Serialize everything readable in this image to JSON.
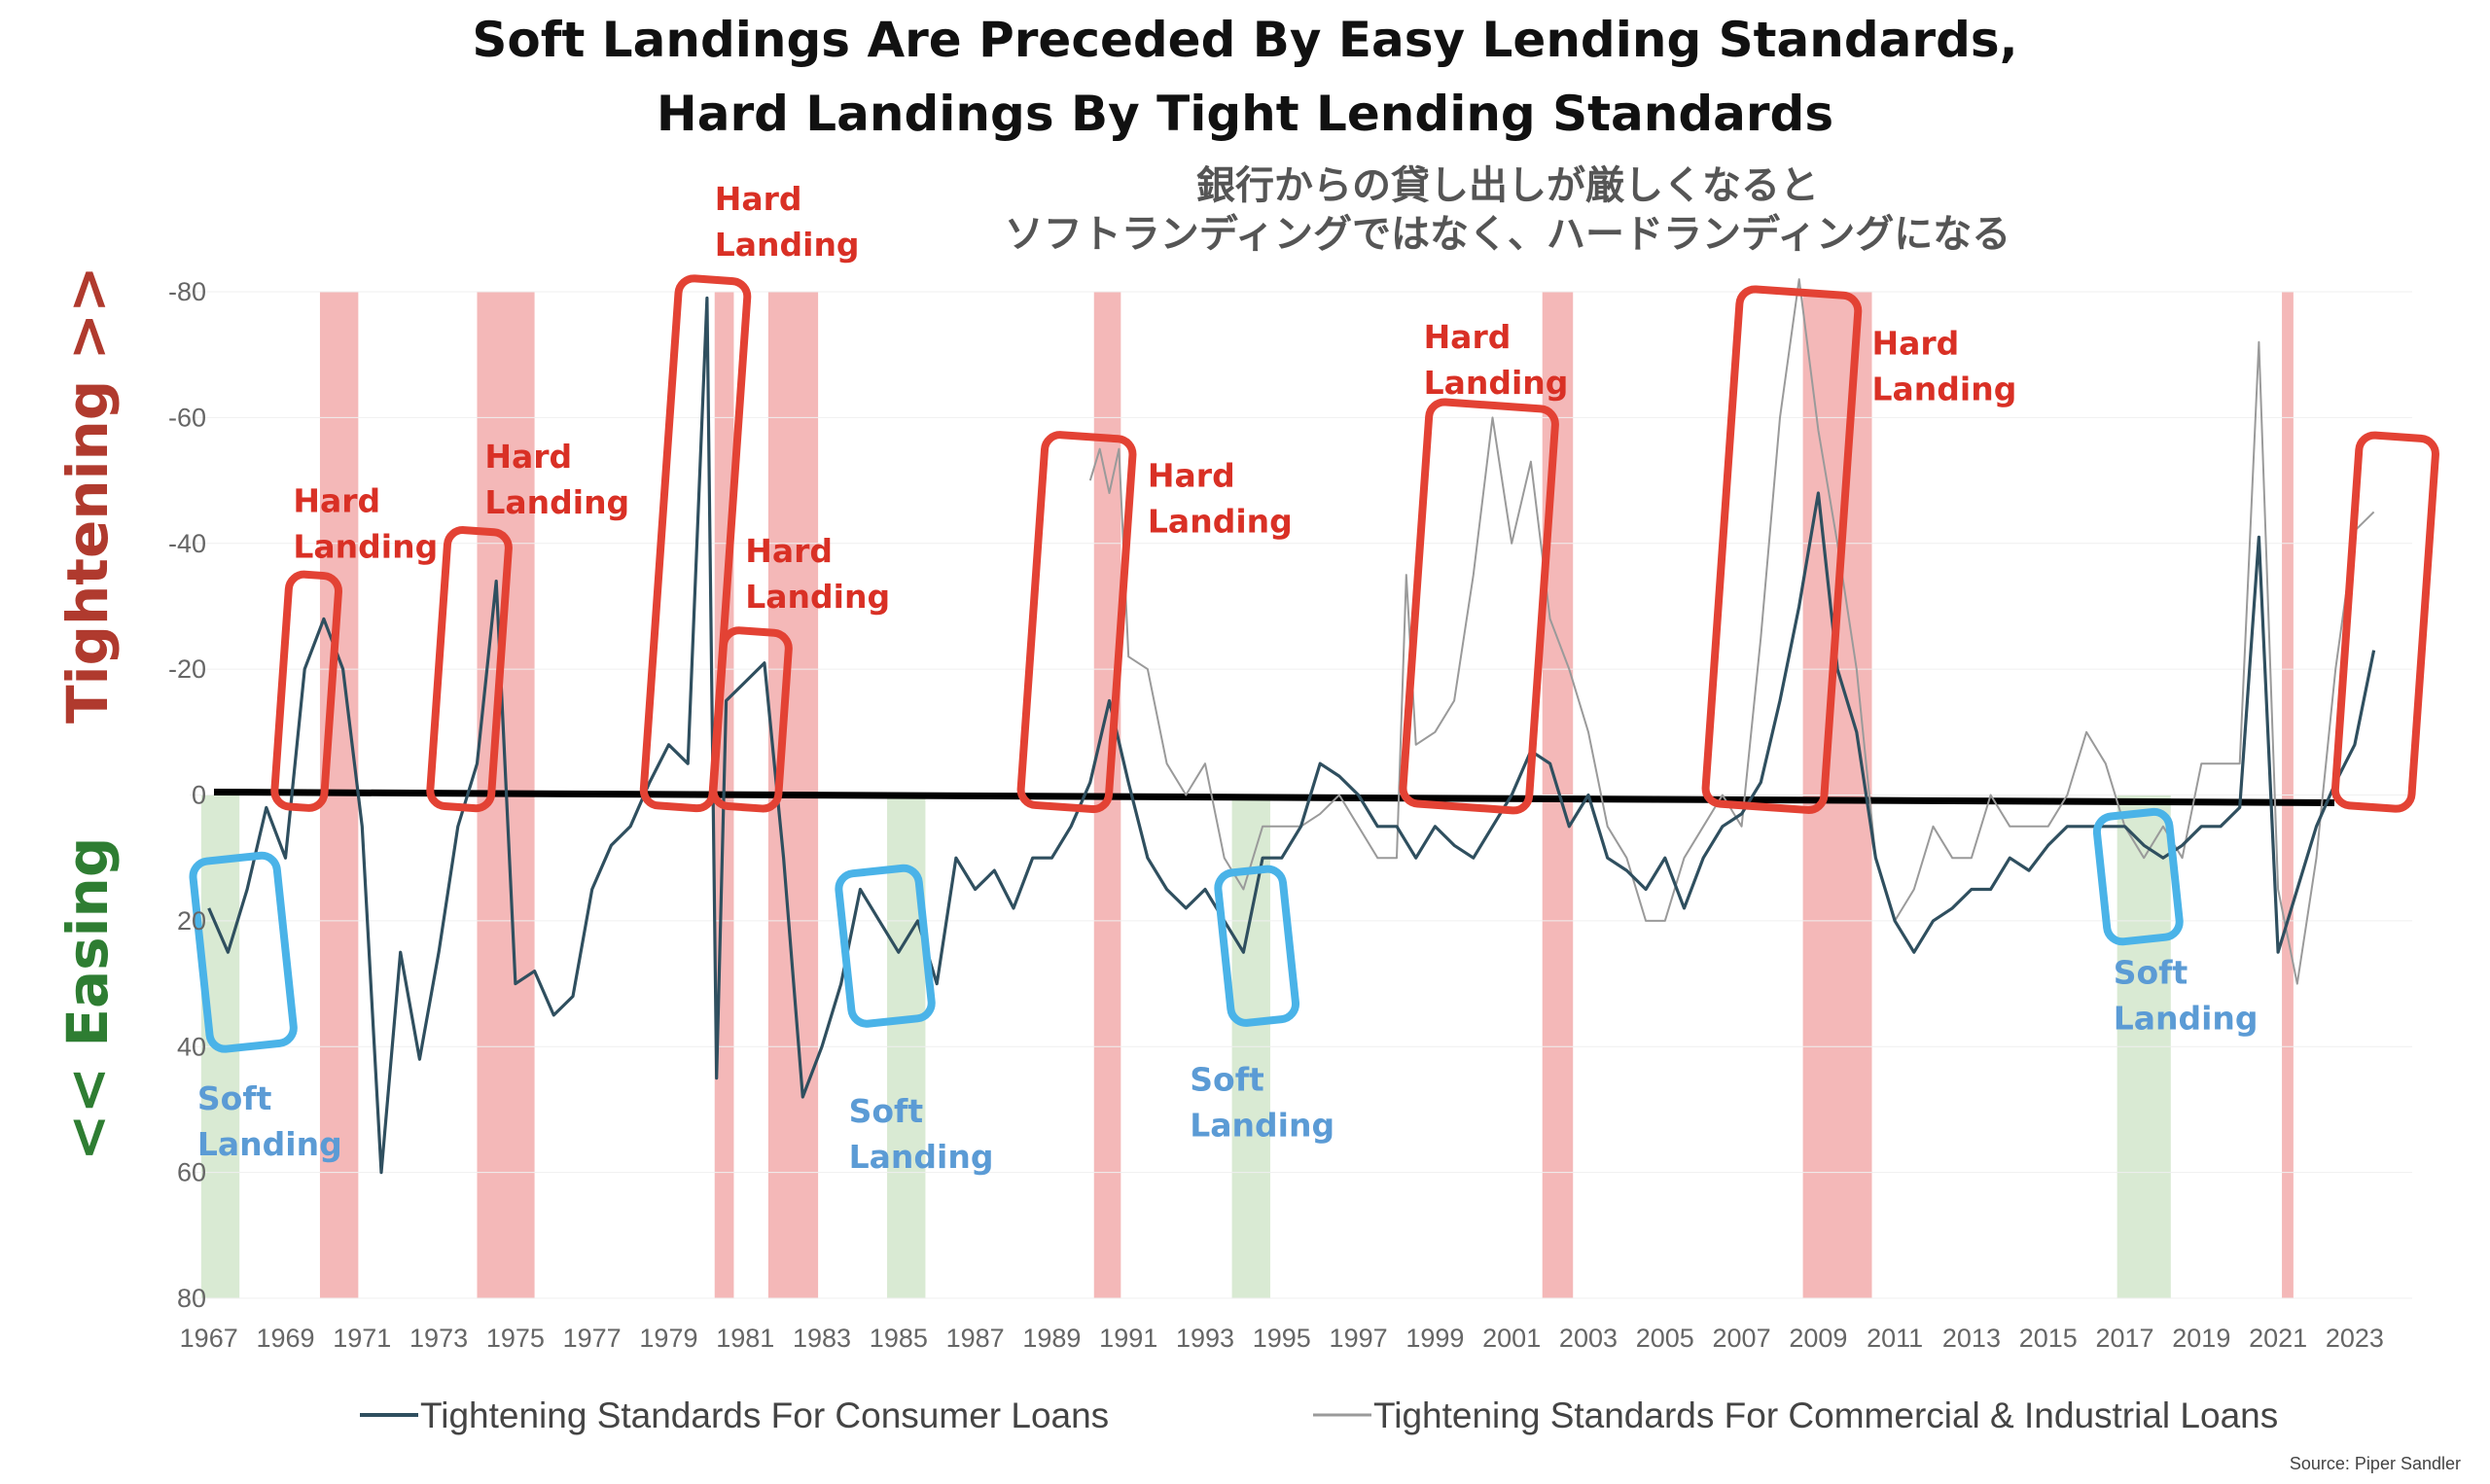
{
  "title_line1": "Soft Landings Are Preceded By Easy Lending Standards,",
  "title_line2": "Hard Landings By Tight Lending Standards",
  "jp_line1": "銀行からの貸し出しが厳しくなると",
  "jp_line2": "ソフトランディングではなく、ハードランディングになる",
  "side_top": "Tightening >>",
  "side_bottom": "<< Easing",
  "source": "Source: Piper Sandler",
  "colors": {
    "consumer": "#2f4f5f",
    "commercial": "#9a9a9a",
    "hard": "#e34234",
    "soft": "#4ab3e8",
    "recession": "#f4b8b8",
    "softband": "#d9ead3"
  },
  "chart_data": {
    "type": "line",
    "y_inverted": true,
    "ylim": [
      80,
      -80
    ],
    "yticks": [
      "-80",
      "-60",
      "-40",
      "-20",
      "0",
      "20",
      "40",
      "60",
      "80"
    ],
    "yticks_values": [
      -80,
      -60,
      -40,
      -20,
      0,
      20,
      40,
      60,
      80
    ],
    "xlim": [
      1966.5,
      2024.5
    ],
    "xticks": [
      "1967",
      "1969",
      "1971",
      "1973",
      "1975",
      "1977",
      "1979",
      "1981",
      "1983",
      "1985",
      "1987",
      "1989",
      "1991",
      "1993",
      "1995",
      "1997",
      "1999",
      "2001",
      "2003",
      "2005",
      "2007",
      "2009",
      "2011",
      "2013",
      "2015",
      "2017",
      "2019",
      "2021",
      "2023"
    ],
    "recession_bands": [
      [
        1969.9,
        1970.9
      ],
      [
        1974.0,
        1975.5
      ],
      [
        1980.2,
        1980.7
      ],
      [
        1981.6,
        1982.9
      ],
      [
        1990.1,
        1990.8
      ],
      [
        2001.8,
        2002.6
      ],
      [
        2008.6,
        2010.4
      ],
      [
        2021.1,
        2021.4
      ]
    ],
    "soft_bands": [
      [
        1966.8,
        1967.8
      ],
      [
        1984.7,
        1985.7
      ],
      [
        1993.7,
        1994.7
      ],
      [
        2016.8,
        2018.2
      ]
    ],
    "annotations": [
      {
        "text": [
          "Hard",
          "Landing"
        ],
        "x": 1969.2,
        "y": -45,
        "kind": "hard"
      },
      {
        "text": [
          "Hard",
          "Landing"
        ],
        "x": 1974.2,
        "y": -52,
        "kind": "hard"
      },
      {
        "text": [
          "Hard",
          "Landing"
        ],
        "x": 1980.2,
        "y": -93,
        "kind": "hard"
      },
      {
        "text": [
          "Hard",
          "Landing"
        ],
        "x": 1981.0,
        "y": -37,
        "kind": "hard"
      },
      {
        "text": [
          "Hard",
          "Landing"
        ],
        "x": 1991.5,
        "y": -49,
        "kind": "hard"
      },
      {
        "text": [
          "Hard",
          "Landing"
        ],
        "x": 1998.7,
        "y": -71,
        "kind": "hard"
      },
      {
        "text": [
          "Hard",
          "Landing"
        ],
        "x": 2010.4,
        "y": -70,
        "kind": "hard"
      },
      {
        "text": [
          "Soft",
          "Landing"
        ],
        "x": 1966.7,
        "y": 50,
        "kind": "soft"
      },
      {
        "text": [
          "Soft",
          "Landing"
        ],
        "x": 1983.7,
        "y": 52,
        "kind": "soft"
      },
      {
        "text": [
          "Soft",
          "Landing"
        ],
        "x": 1992.6,
        "y": 47,
        "kind": "soft"
      },
      {
        "text": [
          "Soft",
          "Landing"
        ],
        "x": 2016.7,
        "y": 30,
        "kind": "soft"
      }
    ],
    "series": [
      {
        "name": "Tightening Standards For Consumer Loans",
        "x": [
          1967.0,
          1967.5,
          1968.0,
          1968.5,
          1969.0,
          1969.5,
          1970.0,
          1970.5,
          1971.0,
          1971.5,
          1972.0,
          1972.5,
          1973.0,
          1973.5,
          1974.0,
          1974.5,
          1975.0,
          1975.5,
          1976.0,
          1976.5,
          1977.0,
          1977.5,
          1978.0,
          1978.5,
          1979.0,
          1979.5,
          1980.0,
          1980.25,
          1980.5,
          1981.0,
          1981.5,
          1982.0,
          1982.5,
          1983.0,
          1983.5,
          1984.0,
          1984.5,
          1985.0,
          1985.5,
          1986.0,
          1986.5,
          1987.0,
          1987.5,
          1988.0,
          1988.5,
          1989.0,
          1989.5,
          1990.0,
          1990.5,
          1991.0,
          1991.5,
          1992.0,
          1992.5,
          1993.0,
          1993.5,
          1994.0,
          1994.5,
          1995.0,
          1995.5,
          1996.0,
          1996.5,
          1997.0,
          1997.5,
          1998.0,
          1998.5,
          1999.0,
          1999.5,
          2000.0,
          2000.5,
          2001.0,
          2001.5,
          2002.0,
          2002.5,
          2003.0,
          2003.5,
          2004.0,
          2004.5,
          2005.0,
          2005.5,
          2006.0,
          2006.5,
          2007.0,
          2007.5,
          2008.0,
          2008.5,
          2009.0,
          2009.5,
          2010.0,
          2010.5,
          2011.0,
          2011.5,
          2012.0,
          2012.5,
          2013.0,
          2013.5,
          2014.0,
          2014.5,
          2015.0,
          2015.5,
          2016.0,
          2016.5,
          2017.0,
          2017.5,
          2018.0,
          2018.5,
          2019.0,
          2019.5,
          2020.0,
          2020.5,
          2021.0,
          2021.5,
          2022.0,
          2022.5,
          2023.0,
          2023.5
        ],
        "y": [
          18,
          25,
          15,
          2,
          10,
          -20,
          -28,
          -20,
          5,
          60,
          25,
          42,
          25,
          5,
          -5,
          -34,
          30,
          28,
          35,
          32,
          15,
          8,
          5,
          -2,
          -8,
          -5,
          -79,
          45,
          -15,
          -18,
          -21,
          10,
          48,
          40,
          30,
          15,
          20,
          25,
          20,
          30,
          10,
          15,
          12,
          18,
          10,
          10,
          5,
          -2,
          -15,
          -2,
          10,
          15,
          18,
          15,
          20,
          25,
          10,
          10,
          5,
          -5,
          -3,
          0,
          5,
          5,
          10,
          5,
          8,
          10,
          5,
          0,
          -7,
          -5,
          5,
          0,
          10,
          12,
          15,
          10,
          18,
          10,
          5,
          3,
          -2,
          -15,
          -30,
          -48,
          -20,
          -10,
          10,
          20,
          25,
          20,
          18,
          15,
          15,
          10,
          12,
          8,
          5,
          5,
          5,
          5,
          8,
          10,
          8,
          5,
          5,
          2,
          -41,
          25,
          15,
          5,
          -2,
          -8,
          -23
        ]
      },
      {
        "name": "Tightening Standards For Commercial & Industrial Loans",
        "x": [
          1990.0,
          1990.25,
          1990.5,
          1990.75,
          1991.0,
          1991.5,
          1992.0,
          1992.5,
          1993.0,
          1993.5,
          1994.0,
          1994.5,
          1995.0,
          1995.5,
          1996.0,
          1996.5,
          1997.0,
          1997.5,
          1998.0,
          1998.25,
          1998.5,
          1999.0,
          1999.5,
          2000.0,
          2000.5,
          2001.0,
          2001.5,
          2002.0,
          2002.5,
          2003.0,
          2003.5,
          2004.0,
          2004.5,
          2005.0,
          2005.5,
          2006.0,
          2006.5,
          2007.0,
          2007.5,
          2008.0,
          2008.5,
          2009.0,
          2009.5,
          2010.0,
          2010.5,
          2011.0,
          2011.5,
          2012.0,
          2012.5,
          2013.0,
          2013.5,
          2014.0,
          2014.5,
          2015.0,
          2015.5,
          2016.0,
          2016.5,
          2017.0,
          2017.5,
          2018.0,
          2018.5,
          2019.0,
          2019.5,
          2020.0,
          2020.5,
          2021.0,
          2021.5,
          2022.0,
          2022.5,
          2023.0,
          2023.5
        ],
        "y": [
          -50,
          -55,
          -48,
          -55,
          -22,
          -20,
          -5,
          0,
          -5,
          10,
          15,
          5,
          5,
          5,
          3,
          0,
          5,
          10,
          10,
          -35,
          -8,
          -10,
          -15,
          -35,
          -60,
          -40,
          -53,
          -28,
          -20,
          -10,
          5,
          10,
          20,
          20,
          10,
          5,
          0,
          5,
          -25,
          -60,
          -82,
          -58,
          -40,
          -20,
          10,
          20,
          15,
          5,
          10,
          10,
          0,
          5,
          5,
          5,
          0,
          -10,
          -5,
          5,
          10,
          5,
          10,
          -5,
          -5,
          -5,
          -72,
          15,
          30,
          10,
          -20,
          -42,
          -45
        ]
      }
    ],
    "boxes": [
      {
        "kind": "soft",
        "x0": 1966.8,
        "x1": 1969.0,
        "y0": 10,
        "y1": 40
      },
      {
        "kind": "hard",
        "x0": 1968.9,
        "x1": 1970.2,
        "y0": -35,
        "y1": 2
      },
      {
        "kind": "hard",
        "x0": 1973.0,
        "x1": 1974.6,
        "y0": -42,
        "y1": 2
      },
      {
        "kind": "hard",
        "x0": 1978.8,
        "x1": 1980.6,
        "y0": -82,
        "y1": 2
      },
      {
        "kind": "hard",
        "x0": 1980.3,
        "x1": 1982.0,
        "y0": -26,
        "y1": 2
      },
      {
        "kind": "soft",
        "x0": 1983.6,
        "x1": 1985.7,
        "y0": 12,
        "y1": 36
      },
      {
        "kind": "hard",
        "x0": 1988.5,
        "x1": 1990.8,
        "y0": -57,
        "y1": 2
      },
      {
        "kind": "soft",
        "x0": 1993.5,
        "x1": 1995.2,
        "y0": 12,
        "y1": 36
      },
      {
        "kind": "hard",
        "x0": 1998.5,
        "x1": 2001.8,
        "y0": -62,
        "y1": 2
      },
      {
        "kind": "hard",
        "x0": 2006.5,
        "x1": 2009.6,
        "y0": -80,
        "y1": 2
      },
      {
        "kind": "soft",
        "x0": 2016.4,
        "x1": 2018.3,
        "y0": 3,
        "y1": 23
      },
      {
        "kind": "hard",
        "x0": 2022.8,
        "x1": 2024.8,
        "y0": -57,
        "y1": 2
      }
    ]
  }
}
